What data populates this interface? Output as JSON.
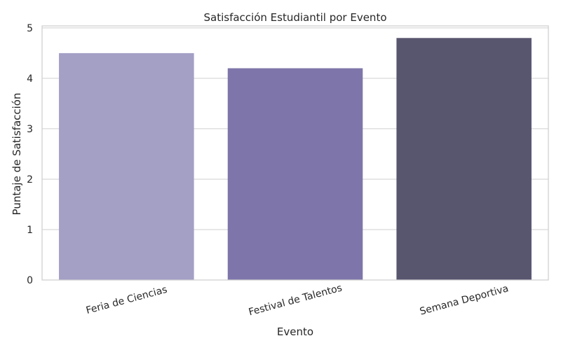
{
  "chart_data": {
    "type": "bar",
    "title": "Satisfacción Estudiantil por Evento",
    "xlabel": "Evento",
    "ylabel": "Puntaje de Satisfacción",
    "categories": [
      "Feria de Ciencias",
      "Festival de Talentos",
      "Semana Deportiva"
    ],
    "values": [
      4.5,
      4.2,
      4.8
    ],
    "ylim": [
      0,
      5.04
    ],
    "yticks": [
      "0",
      "1",
      "2",
      "3",
      "4",
      "5"
    ],
    "grid": "horizontal",
    "colors": [
      "#a39fc5",
      "#7e76aa",
      "#58556f"
    ]
  }
}
